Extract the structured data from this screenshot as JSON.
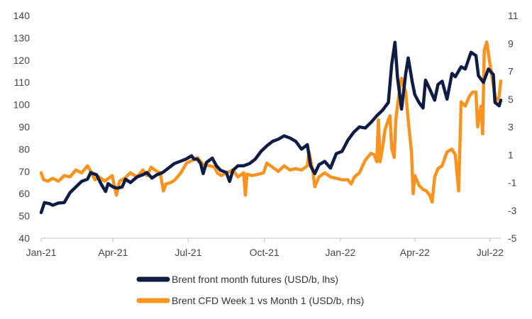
{
  "chart_data": {
    "type": "line",
    "title": "",
    "xlabel": "",
    "ylabel": "",
    "x_ticks": [
      "Jan-21",
      "Apr-21",
      "Jul-21",
      "Oct-21",
      "Jan-22",
      "Apr-22",
      "Jul-22"
    ],
    "x_range": [
      "2021-01-04",
      "2022-07-14"
    ],
    "y_left": {
      "range": [
        40,
        140
      ],
      "ticks": [
        40,
        50,
        60,
        70,
        80,
        90,
        100,
        110,
        120,
        130,
        140
      ]
    },
    "y_right": {
      "range": [
        -5,
        11
      ],
      "ticks": [
        -5,
        -3,
        -1,
        1,
        3,
        5,
        7,
        9,
        11
      ]
    },
    "grid": false,
    "legend_position": "bottom",
    "series": [
      {
        "name": "Brent front month futures (USD/b, lhs)",
        "axis": "left",
        "color": "#0f1d45",
        "points": [
          [
            "2021-01-04",
            51.5
          ],
          [
            "2021-01-08",
            56
          ],
          [
            "2021-01-14",
            55.5
          ],
          [
            "2021-01-18",
            54.8
          ],
          [
            "2021-01-25",
            55.8
          ],
          [
            "2021-02-01",
            56
          ],
          [
            "2021-02-08",
            60.5
          ],
          [
            "2021-02-15",
            63
          ],
          [
            "2021-02-22",
            65.5
          ],
          [
            "2021-03-01",
            66.5
          ],
          [
            "2021-03-05",
            69.5
          ],
          [
            "2021-03-08",
            69
          ],
          [
            "2021-03-12",
            68.5
          ],
          [
            "2021-03-18",
            64
          ],
          [
            "2021-03-23",
            61
          ],
          [
            "2021-03-26",
            64.5
          ],
          [
            "2021-04-01",
            63
          ],
          [
            "2021-04-06",
            62.5
          ],
          [
            "2021-04-12",
            63
          ],
          [
            "2021-04-16",
            66.5
          ],
          [
            "2021-04-22",
            65
          ],
          [
            "2021-04-30",
            67.5
          ],
          [
            "2021-05-07",
            68.5
          ],
          [
            "2021-05-12",
            69.5
          ],
          [
            "2021-05-18",
            67
          ],
          [
            "2021-05-24",
            68.5
          ],
          [
            "2021-05-31",
            69.5
          ],
          [
            "2021-06-07",
            71.5
          ],
          [
            "2021-06-14",
            73.5
          ],
          [
            "2021-06-21",
            74.5
          ],
          [
            "2021-06-28",
            75.5
          ],
          [
            "2021-07-05",
            77
          ],
          [
            "2021-07-08",
            75.5
          ],
          [
            "2021-07-12",
            75.5
          ],
          [
            "2021-07-16",
            73.5
          ],
          [
            "2021-07-19",
            69
          ],
          [
            "2021-07-23",
            74
          ],
          [
            "2021-07-30",
            76
          ],
          [
            "2021-08-04",
            72.5
          ],
          [
            "2021-08-09",
            70.5
          ],
          [
            "2021-08-16",
            69.5
          ],
          [
            "2021-08-20",
            65.5
          ],
          [
            "2021-08-24",
            70.5
          ],
          [
            "2021-08-30",
            72.5
          ],
          [
            "2021-09-06",
            72.5
          ],
          [
            "2021-09-13",
            73.5
          ],
          [
            "2021-09-20",
            75.5
          ],
          [
            "2021-09-27",
            79
          ],
          [
            "2021-10-04",
            81.5
          ],
          [
            "2021-10-11",
            83.5
          ],
          [
            "2021-10-18",
            84.5
          ],
          [
            "2021-10-25",
            86
          ],
          [
            "2021-11-01",
            85
          ],
          [
            "2021-11-08",
            83.5
          ],
          [
            "2021-11-15",
            80
          ],
          [
            "2021-11-22",
            82
          ],
          [
            "2021-11-26",
            72.5
          ],
          [
            "2021-12-01",
            69
          ],
          [
            "2021-12-06",
            73
          ],
          [
            "2021-12-13",
            74.5
          ],
          [
            "2021-12-20",
            71.5
          ],
          [
            "2021-12-27",
            78
          ],
          [
            "2022-01-03",
            79
          ],
          [
            "2022-01-10",
            84
          ],
          [
            "2022-01-17",
            87.5
          ],
          [
            "2022-01-24",
            90
          ],
          [
            "2022-01-31",
            89.5
          ],
          [
            "2022-02-07",
            92
          ],
          [
            "2022-02-14",
            95
          ],
          [
            "2022-02-21",
            97.5
          ],
          [
            "2022-02-28",
            101
          ],
          [
            "2022-03-04",
            118
          ],
          [
            "2022-03-08",
            128
          ],
          [
            "2022-03-11",
            112.5
          ],
          [
            "2022-03-16",
            98
          ],
          [
            "2022-03-21",
            114
          ],
          [
            "2022-03-24",
            121
          ],
          [
            "2022-03-29",
            110
          ],
          [
            "2022-04-01",
            104.5
          ],
          [
            "2022-04-06",
            101
          ],
          [
            "2022-04-11",
            98.5
          ],
          [
            "2022-04-14",
            111
          ],
          [
            "2022-04-19",
            107
          ],
          [
            "2022-04-25",
            102
          ],
          [
            "2022-04-29",
            109
          ],
          [
            "2022-05-04",
            110.5
          ],
          [
            "2022-05-10",
            102.5
          ],
          [
            "2022-05-16",
            114
          ],
          [
            "2022-05-20",
            112.5
          ],
          [
            "2022-05-27",
            117
          ],
          [
            "2022-06-01",
            116
          ],
          [
            "2022-06-08",
            123.5
          ],
          [
            "2022-06-14",
            122
          ],
          [
            "2022-06-17",
            113
          ],
          [
            "2022-06-23",
            110
          ],
          [
            "2022-06-29",
            116
          ],
          [
            "2022-07-05",
            113.5
          ],
          [
            "2022-07-07",
            101
          ],
          [
            "2022-07-12",
            99.5
          ],
          [
            "2022-07-14",
            102
          ]
        ]
      },
      {
        "name": "Brent CFD Week 1 vs Month 1 (USD/b, rhs)",
        "axis": "right",
        "color": "#f7931e",
        "points": [
          [
            "2021-01-04",
            -0.3
          ],
          [
            "2021-01-07",
            -0.8
          ],
          [
            "2021-01-12",
            -0.9
          ],
          [
            "2021-01-18",
            -0.7
          ],
          [
            "2021-01-25",
            -0.9
          ],
          [
            "2021-02-01",
            -0.5
          ],
          [
            "2021-02-08",
            -0.6
          ],
          [
            "2021-02-15",
            -0.1
          ],
          [
            "2021-02-22",
            -0.3
          ],
          [
            "2021-03-01",
            0.2
          ],
          [
            "2021-03-05",
            -0.2
          ],
          [
            "2021-03-10",
            -0.8
          ],
          [
            "2021-03-15",
            -0.6
          ],
          [
            "2021-03-22",
            -0.9
          ],
          [
            "2021-03-31",
            -0.5
          ],
          [
            "2021-04-05",
            -1.9
          ],
          [
            "2021-04-09",
            -0.9
          ],
          [
            "2021-04-15",
            -0.7
          ],
          [
            "2021-04-22",
            -0.3
          ],
          [
            "2021-04-30",
            -0.6
          ],
          [
            "2021-05-07",
            -0.1
          ],
          [
            "2021-05-12",
            -0.5
          ],
          [
            "2021-05-17",
            0.1
          ],
          [
            "2021-05-24",
            -0.2
          ],
          [
            "2021-05-28",
            -0.3
          ],
          [
            "2021-06-01",
            -1.6
          ],
          [
            "2021-06-04",
            -1.1
          ],
          [
            "2021-06-10",
            -1.0
          ],
          [
            "2021-06-15",
            -0.8
          ],
          [
            "2021-06-22",
            -0.3
          ],
          [
            "2021-06-29",
            0.4
          ],
          [
            "2021-07-06",
            0.6
          ],
          [
            "2021-07-12",
            0.8
          ],
          [
            "2021-07-19",
            0.3
          ],
          [
            "2021-07-27",
            0.2
          ],
          [
            "2021-08-02",
            0.1
          ],
          [
            "2021-08-05",
            -0.3
          ],
          [
            "2021-08-10",
            -0.5
          ],
          [
            "2021-08-16",
            -0.3
          ],
          [
            "2021-08-24",
            -0.1
          ],
          [
            "2021-08-30",
            -0.6
          ],
          [
            "2021-09-06",
            -0.3
          ],
          [
            "2021-09-08",
            -1.9
          ],
          [
            "2021-09-10",
            -0.4
          ],
          [
            "2021-09-16",
            -0.5
          ],
          [
            "2021-09-24",
            -0.4
          ],
          [
            "2021-09-30",
            -0.3
          ],
          [
            "2021-10-04",
            0.4
          ],
          [
            "2021-10-11",
            0.1
          ],
          [
            "2021-10-18",
            -0.2
          ],
          [
            "2021-10-25",
            0.2
          ],
          [
            "2021-11-01",
            -0.1
          ],
          [
            "2021-11-08",
            0.0
          ],
          [
            "2021-11-15",
            -0.1
          ],
          [
            "2021-11-22",
            0.2
          ],
          [
            "2021-11-24",
            1.2
          ],
          [
            "2021-11-29",
            -0.3
          ],
          [
            "2021-12-01",
            -1.3
          ],
          [
            "2021-12-06",
            -0.6
          ],
          [
            "2021-12-13",
            -0.3
          ],
          [
            "2021-12-20",
            -0.6
          ],
          [
            "2021-12-27",
            -0.7
          ],
          [
            "2022-01-03",
            -0.8
          ],
          [
            "2022-01-10",
            -0.8
          ],
          [
            "2022-01-14",
            -1.1
          ],
          [
            "2022-01-18",
            -0.6
          ],
          [
            "2022-01-24",
            -0.3
          ],
          [
            "2022-01-31",
            0.6
          ],
          [
            "2022-02-07",
            1.1
          ],
          [
            "2022-02-11",
            1.0
          ],
          [
            "2022-02-14",
            0.5
          ],
          [
            "2022-02-16",
            3.5
          ],
          [
            "2022-02-18",
            0.5
          ],
          [
            "2022-02-21",
            1.5
          ],
          [
            "2022-02-24",
            2.8
          ],
          [
            "2022-02-28",
            3.5
          ],
          [
            "2022-03-02",
            3.8
          ],
          [
            "2022-03-04",
            1.5
          ],
          [
            "2022-03-07",
            0.8
          ],
          [
            "2022-03-09",
            3.5
          ],
          [
            "2022-03-11",
            4.5
          ],
          [
            "2022-03-14",
            5.8
          ],
          [
            "2022-03-16",
            6.5
          ],
          [
            "2022-03-21",
            5.5
          ],
          [
            "2022-03-24",
            3.5
          ],
          [
            "2022-03-28",
            1.2
          ],
          [
            "2022-03-30",
            -1.8
          ],
          [
            "2022-04-01",
            -0.5
          ],
          [
            "2022-04-06",
            -1.2
          ],
          [
            "2022-04-11",
            -1.5
          ],
          [
            "2022-04-15",
            -1.6
          ],
          [
            "2022-04-19",
            -1.9
          ],
          [
            "2022-04-22",
            -2.4
          ],
          [
            "2022-04-25",
            -0.6
          ],
          [
            "2022-04-29",
            0.0
          ],
          [
            "2022-05-04",
            0.2
          ],
          [
            "2022-05-10",
            1.2
          ],
          [
            "2022-05-16",
            1.4
          ],
          [
            "2022-05-20",
            1.0
          ],
          [
            "2022-05-24",
            -1.6
          ],
          [
            "2022-05-27",
            4.8
          ],
          [
            "2022-06-01",
            4.5
          ],
          [
            "2022-06-06",
            5.2
          ],
          [
            "2022-06-10",
            5.5
          ],
          [
            "2022-06-14",
            5.5
          ],
          [
            "2022-06-16",
            3.0
          ],
          [
            "2022-06-20",
            4.5
          ],
          [
            "2022-06-22",
            2.5
          ],
          [
            "2022-06-24",
            8.5
          ],
          [
            "2022-06-27",
            9.1
          ],
          [
            "2022-07-01",
            7.5
          ],
          [
            "2022-07-05",
            6.0
          ],
          [
            "2022-07-08",
            4.8
          ],
          [
            "2022-07-12",
            5.2
          ],
          [
            "2022-07-14",
            6.3
          ]
        ]
      }
    ]
  }
}
